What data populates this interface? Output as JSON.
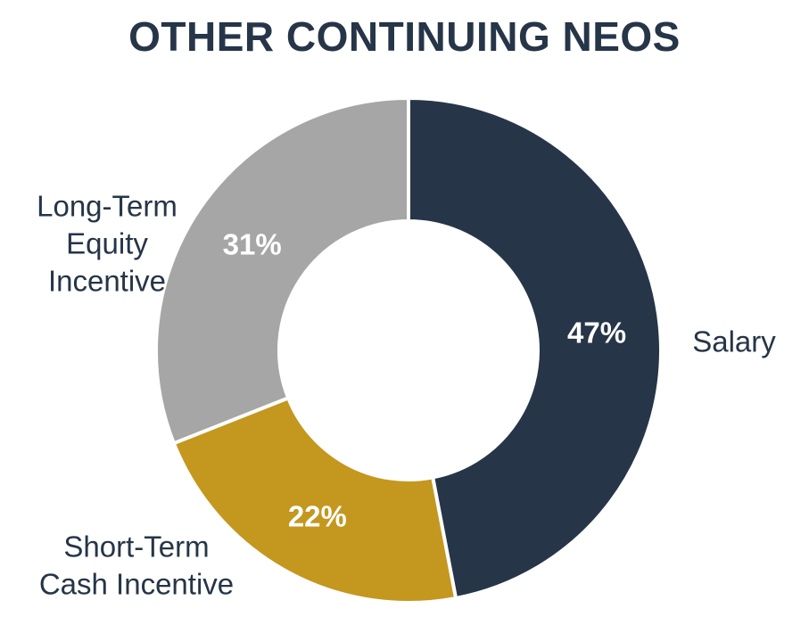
{
  "chart_data": {
    "type": "pie",
    "title": "OTHER CONTINUING NEOS",
    "subtype": "donut",
    "slices": [
      {
        "name": "Salary",
        "label_lines": [
          "Salary"
        ],
        "value": 47,
        "value_label": "47%",
        "color": "#263547"
      },
      {
        "name": "Short-Term Cash Incentive",
        "label_lines": [
          "Short-Term",
          "Cash Incentive"
        ],
        "value": 22,
        "value_label": "22%",
        "color": "#c4971f"
      },
      {
        "name": "Long-Term Equity Incentive",
        "label_lines": [
          "Long-Term",
          "Equity",
          "Incentive"
        ],
        "value": 31,
        "value_label": "31%",
        "color": "#a6a6a6"
      }
    ],
    "start": "top",
    "direction": "clockwise",
    "legend": "none"
  }
}
